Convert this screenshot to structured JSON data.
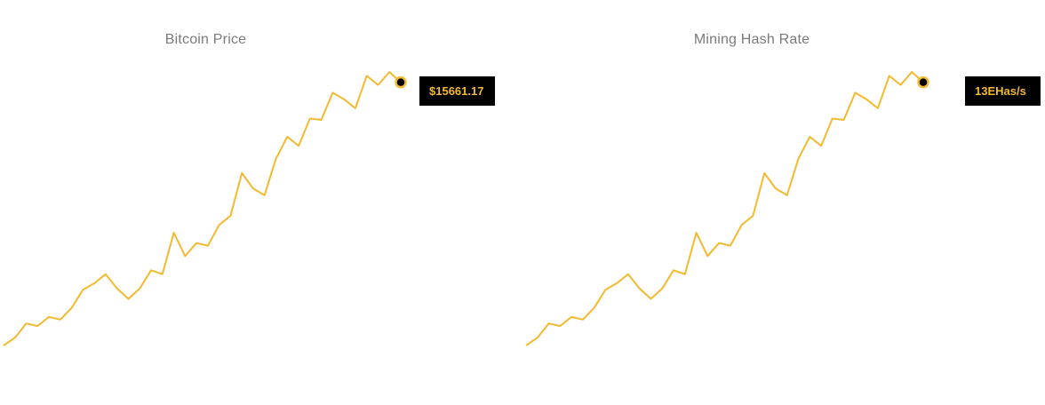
{
  "colors": {
    "line": "#f3ba2f",
    "marker_fill": "#000000",
    "tag_background": "#000000",
    "tag_text": "#f3ba2f",
    "title_text": "#7a7a7a"
  },
  "chart_data": [
    {
      "type": "line",
      "title": "Bitcoin Price",
      "current_value_label": "$15661.17",
      "axes_visible": false,
      "grid": false,
      "series": [
        {
          "values": [
            0,
            6,
            17,
            15,
            22,
            20,
            29,
            43,
            48,
            55,
            44,
            36,
            44,
            58,
            55,
            87,
            69,
            79,
            77,
            93,
            100,
            133,
            121,
            116,
            144,
            161,
            154,
            175,
            174,
            195,
            190,
            183,
            208,
            201,
            211,
            203
          ]
        }
      ]
    },
    {
      "type": "line",
      "title": "Mining Hash Rate",
      "current_value_label": "13EHas/s",
      "axes_visible": false,
      "grid": false,
      "series": [
        {
          "values": [
            0,
            6,
            17,
            15,
            22,
            20,
            29,
            43,
            48,
            55,
            44,
            36,
            44,
            58,
            55,
            87,
            69,
            79,
            77,
            93,
            100,
            133,
            121,
            116,
            144,
            161,
            154,
            175,
            174,
            195,
            190,
            183,
            208,
            201,
            211,
            203
          ]
        }
      ]
    }
  ]
}
